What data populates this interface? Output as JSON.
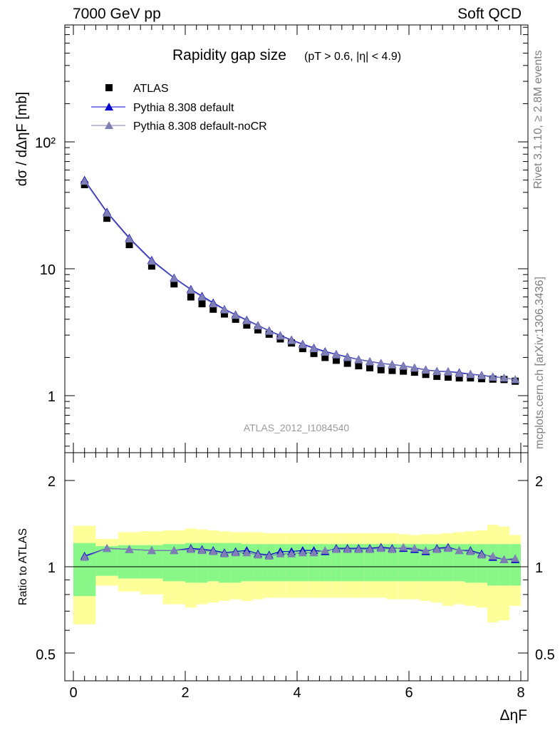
{
  "header": {
    "energy_label": "7000 GeV pp",
    "process_label": "Soft QCD"
  },
  "side": {
    "rivet_label": "Rivet 3.1.10, ≥ 2.8M events",
    "mcplots_label": "mcplots.cern.ch [arXiv:1306.3436]"
  },
  "main_panel": {
    "title": "Rapidity gap size",
    "title_cuts": "(pT > 0.6, |η| < 4.9)",
    "ylabel": "dσ / dΔηF [mb]",
    "analysis_tag": "ATLAS_2012_I1084540",
    "legend": [
      "ATLAS",
      "Pythia 8.308 default",
      "Pythia 8.308 default-noCR"
    ],
    "y_ticks": [
      "10²",
      "10",
      "1"
    ]
  },
  "ratio_panel": {
    "ylabel": "Ratio to ATLAS",
    "y_ticks": [
      "2",
      "1",
      "0.5"
    ],
    "x_ticks": [
      "0",
      "2",
      "4",
      "6",
      "8"
    ],
    "xlabel": "ΔηF"
  },
  "colors": {
    "data": "#000000",
    "pythia_default": "#0000cc",
    "pythia_nocr": "#7f7fb4",
    "band_inner": "#88f788",
    "band_outer": "#ffff99",
    "side_text": "#7f7f7f"
  },
  "chart_data": [
    {
      "type": "scatter",
      "title": "Rapidity gap size",
      "xlabel": "ΔηF",
      "ylabel": "dσ / dΔηF [mb]",
      "xlim": [
        -0.2,
        8.0
      ],
      "ylim": [
        0.35,
        800
      ],
      "yscale": "log",
      "legend_position": "top-left",
      "x": [
        0.2,
        0.6,
        1.0,
        1.4,
        1.8,
        2.1,
        2.3,
        2.5,
        2.7,
        2.9,
        3.1,
        3.3,
        3.5,
        3.7,
        3.9,
        4.1,
        4.3,
        4.5,
        4.7,
        4.9,
        5.1,
        5.3,
        5.5,
        5.7,
        5.9,
        6.1,
        6.3,
        6.5,
        6.7,
        6.9,
        7.1,
        7.3,
        7.5,
        7.7,
        7.9
      ],
      "series": [
        {
          "name": "ATLAS",
          "values": [
            46,
            25,
            15.5,
            10.5,
            7.6,
            6.0,
            5.3,
            4.8,
            4.4,
            4.0,
            3.6,
            3.3,
            3.05,
            2.8,
            2.6,
            2.35,
            2.15,
            2.0,
            1.9,
            1.8,
            1.72,
            1.66,
            1.6,
            1.58,
            1.56,
            1.53,
            1.47,
            1.42,
            1.4,
            1.38,
            1.38,
            1.36,
            1.35,
            1.34,
            1.3
          ]
        },
        {
          "name": "Pythia 8.308 default",
          "values": [
            50,
            28,
            17.5,
            11.7,
            8.5,
            6.9,
            6.1,
            5.4,
            4.8,
            4.35,
            3.95,
            3.58,
            3.25,
            2.98,
            2.75,
            2.55,
            2.38,
            2.23,
            2.12,
            2.02,
            1.93,
            1.86,
            1.8,
            1.76,
            1.72,
            1.66,
            1.6,
            1.56,
            1.55,
            1.52,
            1.48,
            1.45,
            1.41,
            1.38,
            1.34
          ]
        },
        {
          "name": "Pythia 8.308 default-noCR",
          "values": [
            49,
            27.5,
            17.2,
            11.5,
            8.4,
            6.8,
            6.0,
            5.3,
            4.75,
            4.3,
            3.9,
            3.55,
            3.22,
            2.95,
            2.72,
            2.52,
            2.35,
            2.2,
            2.1,
            2.0,
            1.92,
            1.85,
            1.79,
            1.75,
            1.71,
            1.65,
            1.59,
            1.55,
            1.54,
            1.5,
            1.47,
            1.44,
            1.4,
            1.38,
            1.34
          ]
        }
      ]
    },
    {
      "type": "line",
      "title": "",
      "xlabel": "ΔηF",
      "ylabel": "Ratio to ATLAS",
      "xlim": [
        -0.2,
        8.0
      ],
      "ylim": [
        0.4,
        2.4
      ],
      "yscale": "log",
      "x": [
        0.2,
        0.6,
        1.0,
        1.4,
        1.8,
        2.1,
        2.3,
        2.5,
        2.7,
        2.9,
        3.1,
        3.3,
        3.5,
        3.7,
        3.9,
        4.1,
        4.3,
        4.5,
        4.7,
        4.9,
        5.1,
        5.3,
        5.5,
        5.7,
        5.9,
        6.1,
        6.3,
        6.5,
        6.7,
        6.9,
        7.1,
        7.3,
        7.5,
        7.7,
        7.9
      ],
      "bin_edges": [
        0.0,
        0.4,
        0.8,
        1.2,
        1.6,
        2.0,
        2.2,
        2.4,
        2.6,
        2.8,
        3.0,
        3.2,
        3.4,
        3.6,
        3.8,
        4.0,
        4.2,
        4.4,
        4.6,
        4.8,
        5.0,
        5.2,
        5.4,
        5.6,
        5.8,
        6.0,
        6.2,
        6.4,
        6.6,
        6.8,
        7.0,
        7.2,
        7.4,
        7.6,
        7.8,
        8.0
      ],
      "bands": {
        "inner_low": [
          0.79,
          0.93,
          0.91,
          0.91,
          0.89,
          0.88,
          0.88,
          0.89,
          0.88,
          0.88,
          0.89,
          0.89,
          0.89,
          0.89,
          0.89,
          0.89,
          0.89,
          0.89,
          0.89,
          0.89,
          0.89,
          0.89,
          0.89,
          0.89,
          0.89,
          0.89,
          0.89,
          0.89,
          0.89,
          0.89,
          0.88,
          0.88,
          0.86,
          0.86,
          0.86
        ],
        "inner_high": [
          1.21,
          1.18,
          1.19,
          1.19,
          1.2,
          1.21,
          1.21,
          1.21,
          1.21,
          1.21,
          1.2,
          1.2,
          1.2,
          1.2,
          1.2,
          1.2,
          1.2,
          1.2,
          1.2,
          1.2,
          1.2,
          1.2,
          1.2,
          1.2,
          1.2,
          1.2,
          1.2,
          1.2,
          1.2,
          1.2,
          1.2,
          1.2,
          1.2,
          1.2,
          1.2
        ],
        "outer_low": [
          0.63,
          0.86,
          0.82,
          0.8,
          0.74,
          0.72,
          0.74,
          0.75,
          0.76,
          0.77,
          0.76,
          0.77,
          0.78,
          0.78,
          0.78,
          0.78,
          0.78,
          0.78,
          0.78,
          0.78,
          0.78,
          0.78,
          0.78,
          0.77,
          0.77,
          0.77,
          0.76,
          0.75,
          0.73,
          0.74,
          0.73,
          0.72,
          0.64,
          0.65,
          0.73
        ],
        "outer_high": [
          1.39,
          1.25,
          1.32,
          1.33,
          1.34,
          1.36,
          1.35,
          1.34,
          1.33,
          1.32,
          1.32,
          1.32,
          1.31,
          1.31,
          1.31,
          1.31,
          1.31,
          1.31,
          1.31,
          1.31,
          1.31,
          1.31,
          1.31,
          1.31,
          1.3,
          1.29,
          1.3,
          1.3,
          1.31,
          1.32,
          1.33,
          1.34,
          1.4,
          1.38,
          1.29
        ]
      },
      "series": [
        {
          "name": "Pythia 8.308 default",
          "values": [
            1.09,
            1.16,
            1.15,
            1.14,
            1.14,
            1.16,
            1.15,
            1.14,
            1.12,
            1.13,
            1.14,
            1.11,
            1.1,
            1.13,
            1.13,
            1.14,
            1.14,
            1.13,
            1.16,
            1.16,
            1.16,
            1.16,
            1.17,
            1.16,
            1.16,
            1.15,
            1.13,
            1.16,
            1.17,
            1.14,
            1.14,
            1.11,
            1.08,
            1.06,
            1.06
          ]
        },
        {
          "name": "Pythia 8.308 default-noCR",
          "values": [
            1.08,
            1.16,
            1.15,
            1.14,
            1.14,
            1.15,
            1.14,
            1.13,
            1.11,
            1.12,
            1.12,
            1.1,
            1.09,
            1.11,
            1.11,
            1.12,
            1.12,
            1.14,
            1.15,
            1.15,
            1.15,
            1.15,
            1.16,
            1.15,
            1.17,
            1.16,
            1.14,
            1.15,
            1.16,
            1.14,
            1.13,
            1.1,
            1.09,
            1.06,
            1.07
          ]
        }
      ]
    }
  ]
}
